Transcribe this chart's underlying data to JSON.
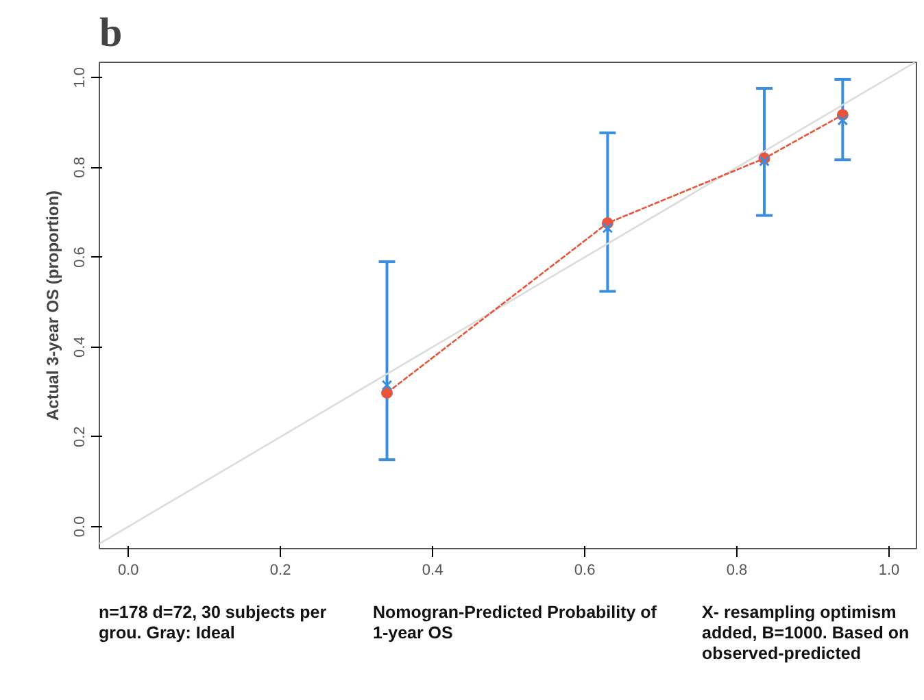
{
  "chart_data": {
    "type": "line",
    "title": "b",
    "xlabel": "Nomogran-Predicted Probability of 1-year OS",
    "ylabel": "Actual 3-year OS (proportion)",
    "annotations": [
      "n=178 d=72, 30 subjects per grou. Gray: Ideal",
      "X- resampling optimism added, B=1000. Based on observed-predicted"
    ],
    "series": [
      {
        "color": "#dcdcdc",
        "x": [
          -0.038,
          1.034
        ],
        "values": [
          -0.038,
          1.034
        ],
        "marker": "none"
      },
      {
        "color": "#e8553a",
        "x": [
          0.34,
          0.63,
          0.836,
          0.939
        ],
        "values": [
          0.298,
          0.676,
          0.82,
          0.917
        ],
        "marker": "circle",
        "line_style": "dashed"
      },
      {
        "type": "scatter",
        "color": "#3a8ee0",
        "x": [
          0.34,
          0.63,
          0.836,
          0.939
        ],
        "values": [
          0.315,
          0.665,
          0.814,
          0.905
        ],
        "marker": "cross",
        "errors": [
          [
            0.149,
            0.59
          ],
          [
            0.524,
            0.877
          ],
          [
            0.693,
            0.976
          ],
          [
            0.817,
            0.996
          ]
        ]
      }
    ],
    "xlim": [
      -0.038,
      1.036
    ],
    "ylim": [
      -0.049,
      1.034
    ],
    "xticks": [
      {
        "value": 0,
        "label": "0.0"
      },
      0.2,
      0.4,
      0.6,
      0.8,
      {
        "value": 1,
        "label": "1.0"
      }
    ],
    "yticks": [
      {
        "value": 0,
        "label": "0.0"
      },
      0.2,
      0.4,
      0.6,
      0.8,
      {
        "value": 1,
        "label": "1.0"
      }
    ],
    "grid": false
  }
}
